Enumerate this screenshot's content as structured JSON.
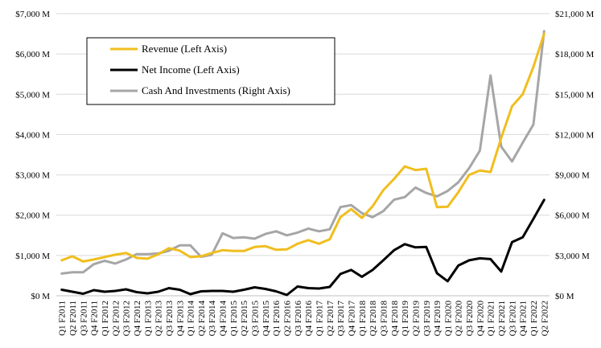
{
  "chart_data": {
    "type": "line",
    "categories": [
      "Q1 F2011",
      "Q2 F2011",
      "Q3 F2011",
      "Q4 F2011",
      "Q1 F2012",
      "Q2 F2012",
      "Q3 F2012",
      "Q4 F2012",
      "Q1 F2013",
      "Q2 F2013",
      "Q3 F2013",
      "Q4 F2013",
      "Q1 F2014",
      "Q2 F2014",
      "Q3 F2014",
      "Q4 F2014",
      "Q1 F2015",
      "Q2 F2015",
      "Q3 F2015",
      "Q4 F2015",
      "Q1 F2016",
      "Q2 F2016",
      "Q3 F2016",
      "Q4 F2016",
      "Q1 F2017",
      "Q2 F2017",
      "Q3 F2017",
      "Q4 F2017",
      "Q1 F2018",
      "Q2 F2018",
      "Q3 F2018",
      "Q4 F2018",
      "Q1 F2019",
      "Q2 F2019",
      "Q3 F2019",
      "Q4 F2019",
      "Q1 F2020",
      "Q2 F2020",
      "Q3 F2020",
      "Q4 F2020",
      "Q1 F2021",
      "Q2 F2021",
      "Q3 F2021",
      "Q4 F2021",
      "Q1 F2022",
      "Q2 F2022"
    ],
    "series": [
      {
        "name": "Revenue (Left Axis)",
        "axis": "left",
        "color": "#F0BE1E",
        "values": [
          880,
          980,
          850,
          900,
          960,
          1020,
          1060,
          940,
          920,
          1030,
          1180,
          1120,
          960,
          980,
          1060,
          1130,
          1110,
          1110,
          1210,
          1230,
          1140,
          1150,
          1290,
          1380,
          1290,
          1400,
          1950,
          2150,
          1930,
          2220,
          2620,
          2900,
          3210,
          3120,
          3150,
          2200,
          2210,
          2570,
          3000,
          3110,
          3070,
          3920,
          4700,
          5000,
          5680,
          6500
        ]
      },
      {
        "name": "Net Income (Left Axis)",
        "axis": "left",
        "color": "#000000",
        "values": [
          150,
          100,
          50,
          140,
          100,
          120,
          160,
          90,
          60,
          100,
          190,
          150,
          40,
          110,
          120,
          120,
          100,
          150,
          210,
          170,
          110,
          20,
          230,
          190,
          180,
          220,
          540,
          640,
          470,
          640,
          880,
          1130,
          1280,
          1200,
          1210,
          560,
          360,
          750,
          880,
          930,
          910,
          600,
          1330,
          1450,
          1910,
          2380
        ]
      },
      {
        "name": "Cash And Investments (Right Axis)",
        "axis": "right",
        "color": "#A6A6A6",
        "values": [
          1650,
          1750,
          1750,
          2350,
          2600,
          2400,
          2700,
          3100,
          3100,
          3150,
          3350,
          3750,
          3750,
          2900,
          3050,
          4650,
          4300,
          4350,
          4250,
          4600,
          4800,
          4500,
          4700,
          5000,
          4800,
          4950,
          6600,
          6750,
          6150,
          5850,
          6300,
          7150,
          7350,
          8050,
          7650,
          7400,
          7800,
          8450,
          9500,
          10800,
          16400,
          11100,
          10000,
          11400,
          12750,
          19700
        ]
      }
    ],
    "ylim_left": [
      0,
      7000
    ],
    "ylim_right": [
      0,
      21000
    ],
    "yticks_left": [
      "$0 M",
      "$1,000 M",
      "$2,000 M",
      "$3,000 M",
      "$4,000 M",
      "$5,000 M",
      "$6,000 M",
      "$7,000 M"
    ],
    "yticks_right": [
      "$0 M",
      "$3,000 M",
      "$6,000 M",
      "$9,000 M",
      "$12,000 M",
      "$15,000 M",
      "$18,000 M",
      "$21,000 M"
    ],
    "title": "",
    "xlabel": "",
    "ylabel": "",
    "grid": "horizontal",
    "legend_placement": "top-left"
  }
}
